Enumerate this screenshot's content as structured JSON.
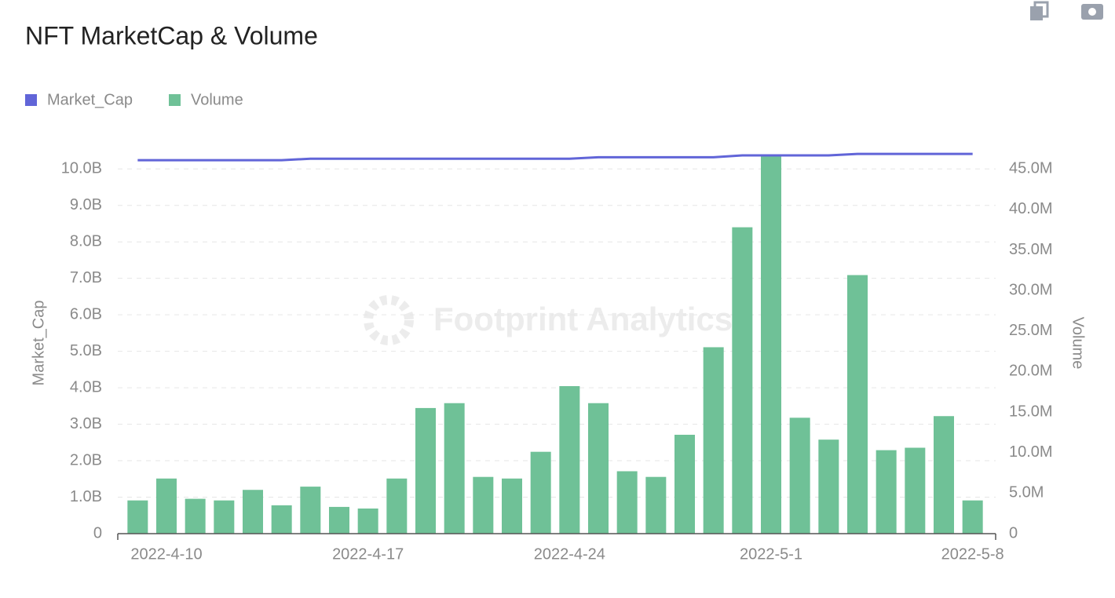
{
  "chart_data": {
    "type": "bar_line",
    "title": "NFT MarketCap & Volume",
    "watermark": "Footprint Analytics",
    "categories": [
      null,
      "2022-4-10",
      null,
      null,
      null,
      null,
      null,
      null,
      "2022-4-17",
      null,
      null,
      null,
      null,
      null,
      null,
      "2022-4-24",
      null,
      null,
      null,
      null,
      null,
      null,
      "2022-5-1",
      null,
      null,
      null,
      null,
      null,
      null,
      "2022-5-8"
    ],
    "series": [
      {
        "name": "Market_Cap",
        "type": "line",
        "color": "#6165d8",
        "axis": "y",
        "values": [
          10.24,
          10.24,
          10.24,
          10.24,
          10.24,
          10.24,
          10.28,
          10.28,
          10.28,
          10.28,
          10.28,
          10.28,
          10.28,
          10.28,
          10.28,
          10.28,
          10.32,
          10.32,
          10.32,
          10.32,
          10.32,
          10.37,
          10.37,
          10.37,
          10.37,
          10.41,
          10.41,
          10.41,
          10.41,
          10.41
        ]
      },
      {
        "name": "Volume",
        "type": "bar",
        "color": "#6fc197",
        "axis": "y2",
        "values": [
          4.1,
          6.8,
          4.3,
          4.1,
          5.4,
          3.5,
          5.8,
          3.3,
          3.1,
          6.8,
          15.5,
          16.1,
          7.0,
          6.8,
          10.1,
          18.2,
          16.1,
          7.7,
          7.0,
          12.2,
          23.0,
          37.8,
          46.7,
          14.3,
          11.6,
          31.9,
          10.3,
          10.6,
          14.5,
          4.1
        ]
      }
    ],
    "ylabel": "Market_Cap",
    "y2label": "Volume",
    "ylim": [
      0,
      10.5
    ],
    "yticks": [
      0,
      {
        "value": 1,
        "label": "1.0B"
      },
      {
        "value": 2,
        "label": "2.0B"
      },
      {
        "value": 3,
        "label": "3.0B"
      },
      {
        "value": 4,
        "label": "4.0B"
      },
      {
        "value": 5,
        "label": "5.0B"
      },
      {
        "value": 6,
        "label": "6.0B"
      },
      {
        "value": 7,
        "label": "7.0B"
      },
      {
        "value": 8,
        "label": "8.0B"
      },
      {
        "value": 9,
        "label": "9.0B"
      },
      {
        "value": 10,
        "label": "10.0B"
      }
    ],
    "y2lim": [
      0,
      47.25
    ],
    "y2ticks": [
      0,
      {
        "value": 5,
        "label": "5.0M"
      },
      {
        "value": 10,
        "label": "10.0M"
      },
      {
        "value": 15,
        "label": "15.0M"
      },
      {
        "value": 20,
        "label": "20.0M"
      },
      {
        "value": 25,
        "label": "25.0M"
      },
      {
        "value": 30,
        "label": "30.0M"
      },
      {
        "value": 35,
        "label": "35.0M"
      },
      {
        "value": 40,
        "label": "40.0M"
      },
      {
        "value": 45,
        "label": "45.0M"
      }
    ],
    "grid": true,
    "legend": "top-left"
  }
}
